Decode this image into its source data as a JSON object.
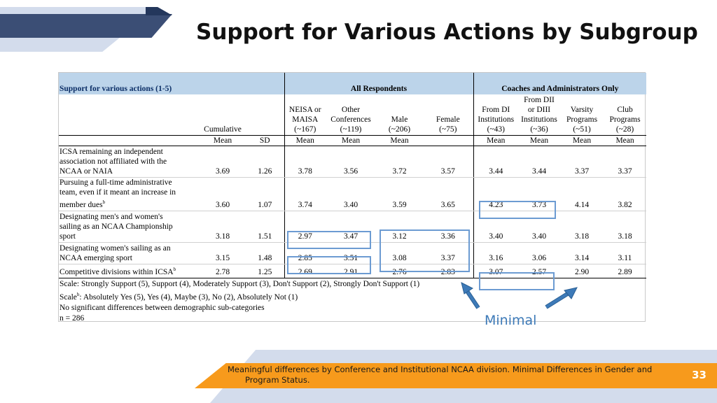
{
  "slide": {
    "title": "Support for Various Actions by Subgroup",
    "minimal_label": "Minimal",
    "footer_line1": "Meaningful differences by Conference and Institutional NCAA division.  Minimal Differences in Gender and",
    "footer_line2": "Program Status.",
    "page_number": "33"
  },
  "table": {
    "corner_label": "Support for various actions (1-5)",
    "group_all": "All Respondents",
    "group_coaches": "Coaches and Administrators Only",
    "columns": [
      {
        "head": [
          "Cumulative"
        ],
        "measure": "Mean"
      },
      {
        "head": [
          ""
        ],
        "measure": "SD"
      },
      {
        "head": [
          "NEISA or",
          "MAISA",
          "(~167)"
        ],
        "measure": "Mean"
      },
      {
        "head": [
          "Other",
          "Conferences",
          "(~119)"
        ],
        "measure": "Mean"
      },
      {
        "head": [
          "Male",
          "(~206)"
        ],
        "measure": "Mean"
      },
      {
        "head": [
          "Female",
          "(~75)"
        ],
        "measure": ""
      },
      {
        "head": [
          "From DI",
          "Institutions",
          "(~43)"
        ],
        "measure": "Mean"
      },
      {
        "head": [
          "From DII",
          "or DIII",
          "Institutions",
          "(~36)"
        ],
        "measure": "Mean"
      },
      {
        "head": [
          "Varsity",
          "Programs",
          "(~51)"
        ],
        "measure": "Mean"
      },
      {
        "head": [
          "Club",
          "Programs",
          "(~28)"
        ],
        "measure": "Mean"
      }
    ],
    "rows": [
      {
        "label": [
          "ICSA remaining an independent",
          "association not affiliated with the",
          "NCAA or NAIA"
        ],
        "sup": "",
        "values": [
          "3.69",
          "1.26",
          "3.78",
          "3.56",
          "3.72",
          "3.57",
          "3.44",
          "3.44",
          "3.37",
          "3.37"
        ]
      },
      {
        "label": [
          "Pursuing a full-time administrative",
          "team, even if it meant an increase in",
          "member dues"
        ],
        "sup": "b",
        "values": [
          "3.60",
          "1.07",
          "3.74",
          "3.40",
          "3.59",
          "3.65",
          "4.23",
          "3.73",
          "4.14",
          "3.82"
        ]
      },
      {
        "label": [
          "Designating men's and women's",
          "sailing as an NCAA Championship",
          "sport"
        ],
        "sup": "",
        "values": [
          "3.18",
          "1.51",
          "2.97",
          "3.47",
          "3.12",
          "3.36",
          "3.40",
          "3.40",
          "3.18",
          "3.18"
        ]
      },
      {
        "label": [
          "Designating women's sailing as an",
          "NCAA emerging sport"
        ],
        "sup": "",
        "values": [
          "3.15",
          "1.48",
          "2.85",
          "3.51",
          "3.08",
          "3.37",
          "3.16",
          "3.06",
          "3.14",
          "3.11"
        ]
      },
      {
        "label": [
          "Competitive divisions within ICSA"
        ],
        "sup": "b",
        "values": [
          "2.78",
          "1.25",
          "2.69",
          "2.91",
          "2.76",
          "2.83",
          "3.07",
          "2.57",
          "2.90",
          "2.89"
        ]
      }
    ],
    "notes": {
      "scale": "Scale: Strongly Support (5), Support (4), Moderately Support (3), Don't Support (2), Strongly Don't Support (1)",
      "scale_b_prefix": "Scale",
      "scale_b_sup": "b",
      "scale_b_text": ": Absolutely Yes (5), Yes (4), Maybe (3), No (2), Absolutely Not (1)",
      "no_diff": "No significant differences between demographic sub-categories",
      "n": "n = 286"
    }
  },
  "colors": {
    "header_fill": "#bcd4ea",
    "highlight": "#6c9bd2",
    "accent_orange": "#f79a1c",
    "navy": "#3b4e75",
    "arrow": "#3d7ab8"
  }
}
